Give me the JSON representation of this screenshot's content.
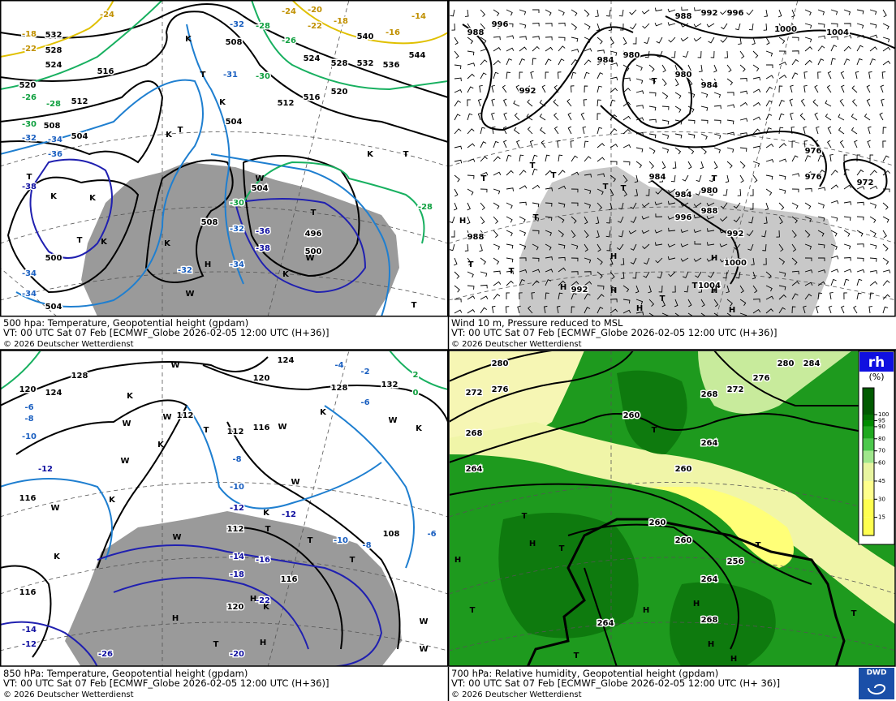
{
  "panels": [
    {
      "caption": "500 hpa: Temperature, Geopotential height (gpdam)",
      "valid_time": "VT: 00 UTC Sat  07 Feb [ECMWF_Globe 2026-02-05 12:00 UTC  (H+36)]",
      "copyright": "© 2026 Deutscher Wetterdienst",
      "contour_labels": [
        "532",
        "528",
        "524",
        "520",
        "516",
        "512",
        "508",
        "504",
        "508",
        "504",
        "512",
        "516",
        "520",
        "524",
        "528",
        "532",
        "536",
        "540",
        "544",
        "504",
        "508",
        "496",
        "500",
        "500",
        "504",
        "-26",
        "-28",
        "-30",
        "-32",
        "-34",
        "-36",
        "-38",
        "-34",
        "-34",
        "-24",
        "-24",
        "-22",
        "-20",
        "-18",
        "-16",
        "-14",
        "-22",
        "-18",
        "-26",
        "-28",
        "-30",
        "-31",
        "-32",
        "-30",
        "-32",
        "-34",
        "-36",
        "-38",
        "-32",
        "-28"
      ],
      "symbols": [
        "K",
        "T",
        "K",
        "T",
        "K",
        "T",
        "K",
        "K",
        "T",
        "K",
        "T",
        "K",
        "T",
        "H",
        "K",
        "T",
        "W",
        "W",
        "K",
        "W"
      ]
    },
    {
      "caption": "Wind 10 m, Pressure reduced to MSL",
      "valid_time": "VT: 00 UTC Sat  07 Feb [ECMWF_Globe 2026-02-05 12:00 UTC (H+36)]",
      "copyright": "© 2026 Deutscher Wetterdienst",
      "contour_labels": [
        "988",
        "996",
        "988",
        "992",
        "996",
        "1000",
        "1004",
        "984",
        "980",
        "980",
        "984",
        "992",
        "976",
        "976",
        "972",
        "984",
        "984",
        "980",
        "988",
        "996",
        "992",
        "1000",
        "1004",
        "988",
        "992"
      ],
      "symbols": [
        "T",
        "T",
        "T",
        "T",
        "T",
        "T",
        "H",
        "T",
        "T",
        "H",
        "H",
        "H",
        "H",
        "H",
        "T",
        "H",
        "H",
        "T",
        "T",
        "T"
      ]
    },
    {
      "caption": "850 hPa:  Temperature, Geopotential height (gpdam)",
      "valid_time": "VT: 00 UTC Sat  07 Feb [ECMWF_Globe 2026-02-05 12:00 UTC (H+36)]",
      "copyright": "© 2026 Deutscher Wetterdienst",
      "contour_labels": [
        "128",
        "124",
        "120",
        "124",
        "120",
        "112",
        "112",
        "116",
        "132",
        "128",
        "116",
        "116",
        "108",
        "112",
        "120",
        "116",
        "-4",
        "-2",
        "2",
        "0",
        "-6",
        "-6",
        "-8",
        "-10",
        "-8",
        "-10",
        "-12",
        "-12",
        "-10",
        "-8",
        "-6",
        "-12",
        "-14",
        "-12",
        "-14",
        "-16",
        "-18",
        "-20",
        "-22",
        "-26"
      ],
      "symbols": [
        "W",
        "K",
        "W",
        "W",
        "T",
        "K",
        "W",
        "K",
        "W",
        "K",
        "W",
        "W",
        "K",
        "K",
        "W",
        "K",
        "T",
        "T",
        "W",
        "H",
        "H",
        "K",
        "H",
        "T",
        "W",
        "W",
        "T"
      ]
    },
    {
      "caption": "700 hPa:  Relative humidity, Geopotential height (gpdam)",
      "valid_time": "VT: 00 UTC Sat  07 Feb [ECMWF_Globe  2026-02-05 12:00 UTC  (H+ 36)]",
      "copyright": "© 2026 Deutscher Wetterdienst",
      "contour_labels": [
        "280",
        "276",
        "272",
        "268",
        "264",
        "260",
        "264",
        "260",
        "260",
        "260",
        "256",
        "264",
        "268",
        "264",
        "268",
        "272",
        "276",
        "280",
        "284"
      ],
      "symbols": [
        "T",
        "T",
        "H",
        "T",
        "H",
        "T",
        "H",
        "H",
        "H",
        "H",
        "T",
        "T",
        "T"
      ]
    }
  ],
  "legend": {
    "title": "rh",
    "unit": "(%)",
    "ticks": [
      100,
      95,
      90,
      80,
      70,
      60,
      45,
      30,
      15
    ]
  },
  "logo": "DWD"
}
